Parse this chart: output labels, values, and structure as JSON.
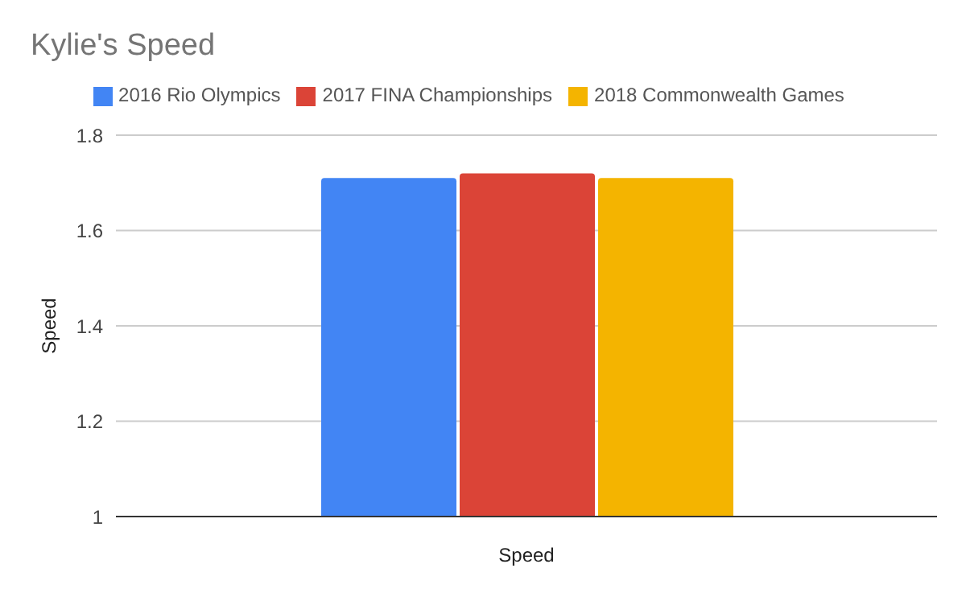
{
  "chart_data": {
    "type": "bar",
    "title": "Kylie's Speed",
    "xlabel": "Speed",
    "ylabel": "Speed",
    "categories": [
      null
    ],
    "series": [
      {
        "name": "2016 Rio Olympics",
        "color": "#4285f4",
        "values": [
          1.71
        ]
      },
      {
        "name": "2017 FINA Championships",
        "color": "#db4437",
        "values": [
          1.72
        ]
      },
      {
        "name": "2018 Commonwealth Games",
        "color": "#f4b400",
        "values": [
          1.71
        ]
      }
    ],
    "ylim": [
      1,
      1.8
    ],
    "yticks": [
      1,
      1.2,
      1.4,
      1.6,
      1.8
    ],
    "grid": "y",
    "legend": "top"
  }
}
